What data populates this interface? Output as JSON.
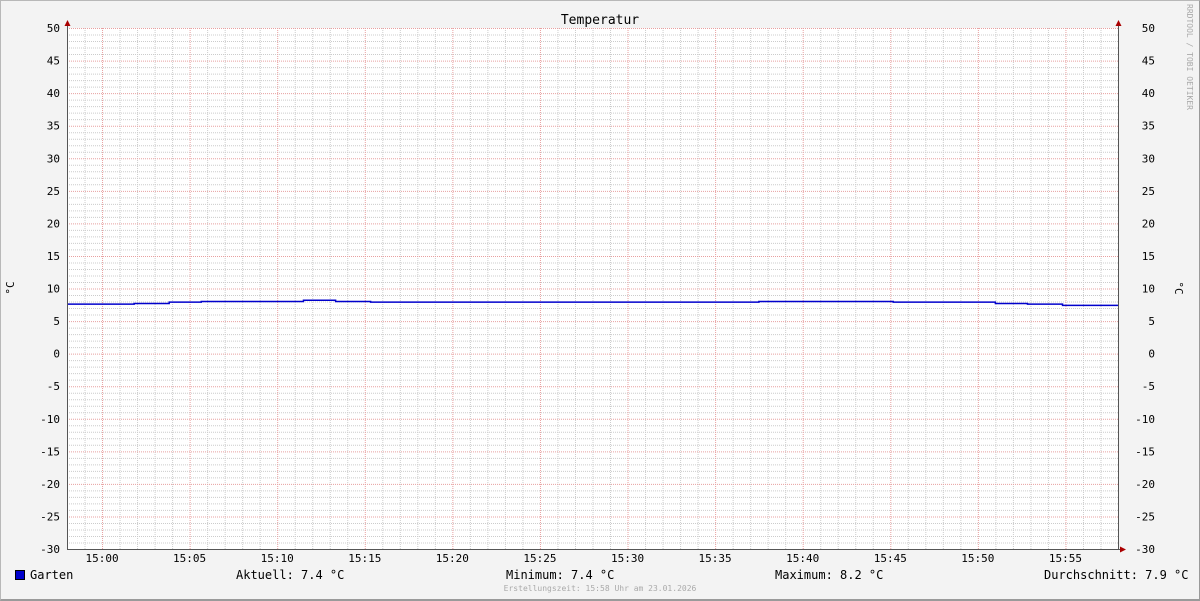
{
  "chart_data": {
    "type": "line",
    "title": "Temperatur",
    "ylabel": "°C",
    "ylim": [
      -30,
      50
    ],
    "yticks": [
      50,
      45,
      40,
      35,
      30,
      25,
      20,
      15,
      10,
      5,
      0,
      -5,
      -10,
      -15,
      -20,
      -25,
      -30
    ],
    "xlim": [
      "14:58:00",
      "15:58:00"
    ],
    "xticks": [
      "15:00",
      "15:05",
      "15:10",
      "15:15",
      "15:20",
      "15:25",
      "15:30",
      "15:35",
      "15:40",
      "15:45",
      "15:50",
      "15:55"
    ],
    "grid": true,
    "watermark": "RRDTOOL / TOBI OETIKER",
    "series": [
      {
        "name": "Garten",
        "color": "#0000cc",
        "step": true,
        "points": [
          [
            "14:58:00",
            7.6
          ],
          [
            "15:01:50",
            7.7
          ],
          [
            "15:03:50",
            7.9
          ],
          [
            "15:05:40",
            8.0
          ],
          [
            "15:11:30",
            8.2
          ],
          [
            "15:13:20",
            8.0
          ],
          [
            "15:15:20",
            7.9
          ],
          [
            "15:37:30",
            8.0
          ],
          [
            "15:45:10",
            7.9
          ],
          [
            "15:51:00",
            7.7
          ],
          [
            "15:52:50",
            7.6
          ],
          [
            "15:54:50",
            7.4
          ],
          [
            "15:58:00",
            7.4
          ]
        ]
      }
    ]
  },
  "legend": {
    "name": "Garten",
    "color": "#0000cc",
    "current": "Aktuell: 7.4 °C",
    "minimum": "Minimum: 7.4 °C",
    "maximum": "Maximum: 8.2 °C",
    "average": "Durchschnitt: 7.9 °C"
  },
  "created": "Erstellungszeit: 15:58 Uhr am 23.01.2026"
}
